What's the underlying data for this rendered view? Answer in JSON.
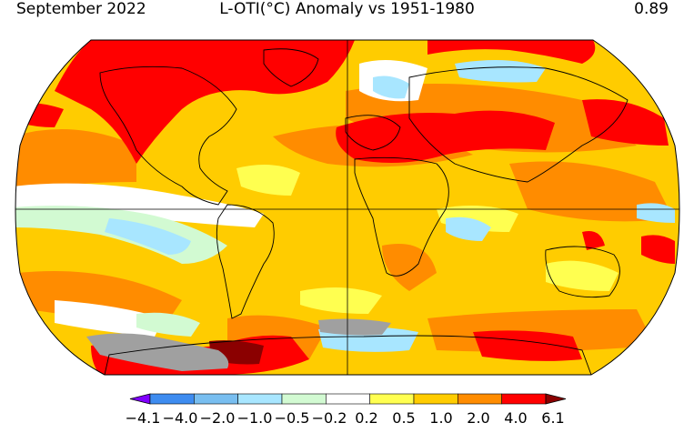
{
  "header": {
    "date": "September 2022",
    "title": "L-OTI(°C) Anomaly vs 1951-1980",
    "global_mean": "0.89"
  },
  "legend": {
    "colors": [
      "#8000ff",
      "#3e8cf0",
      "#78bef0",
      "#a8e6ff",
      "#d2fad2",
      "#ffffff",
      "#ffff50",
      "#ffcc00",
      "#ff8c00",
      "#ff0000",
      "#8b0000"
    ],
    "labels": [
      "−4.1",
      "−4.0",
      "−2.0",
      "−1.0",
      "−0.5",
      "−0.2",
      "0.2",
      "0.5",
      "1.0",
      "2.0",
      "4.0",
      "6.1"
    ]
  },
  "map_colors": {
    "no_data": "#a0a0a0",
    "outline": "#000000"
  }
}
